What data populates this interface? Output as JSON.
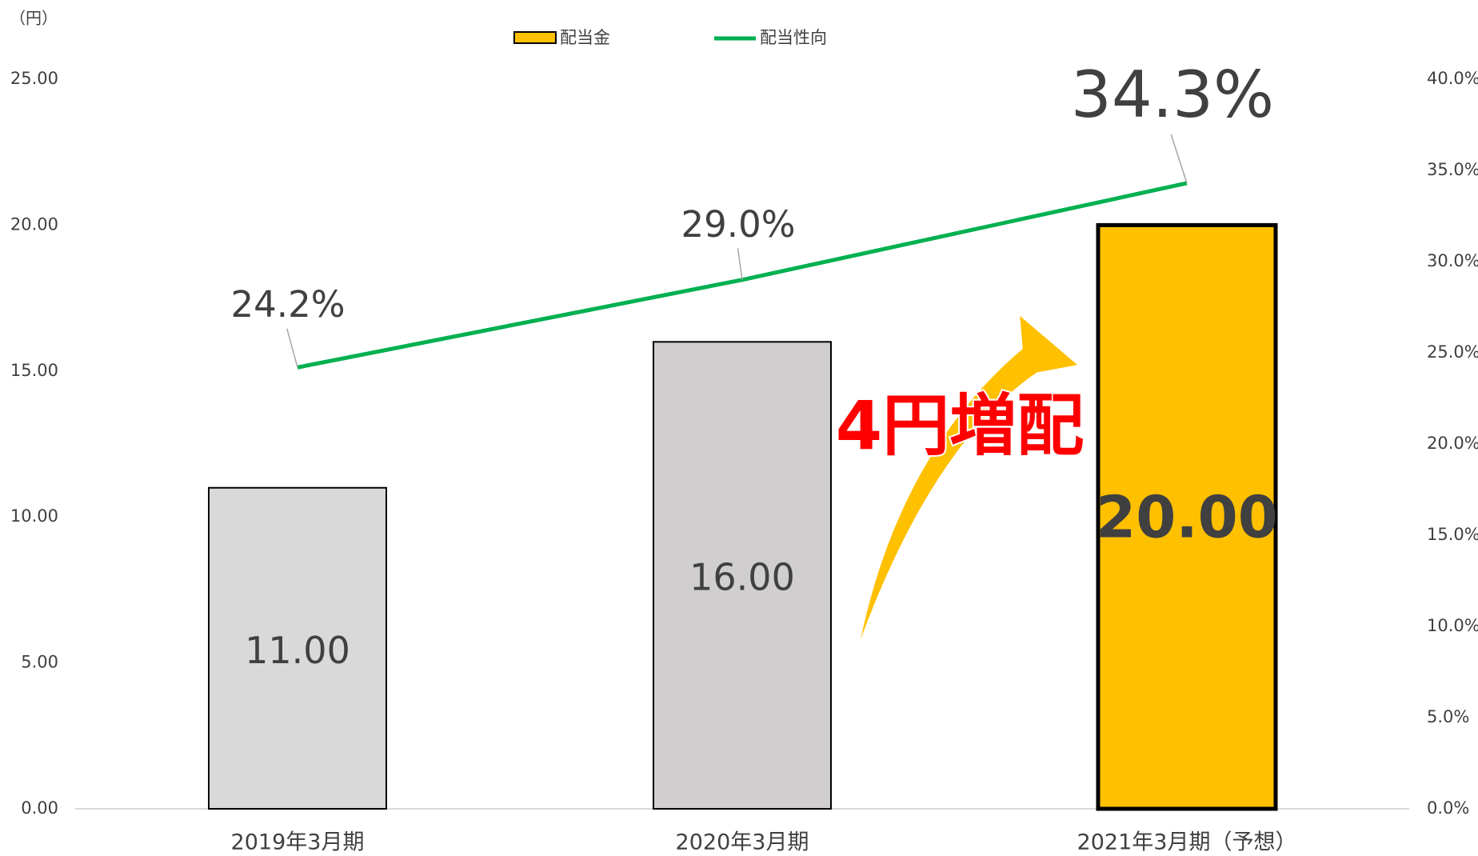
{
  "chart_data": {
    "type": "combo",
    "y_unit_label": "（円）",
    "annotation": "4円増配",
    "categories": [
      "2019年3月期",
      "2020年3月期",
      "2021年3月期（予想）"
    ],
    "series": [
      {
        "name": "配当金",
        "type": "bar",
        "legend_color": "#ffc000",
        "colors": [
          "#d9d9d9",
          "#d0cece",
          "#ffc000"
        ],
        "values": [
          11,
          16,
          20
        ],
        "value_labels": [
          "11.00",
          "16.00",
          "20.00"
        ]
      },
      {
        "name": "配当性向",
        "type": "line",
        "axis": "y2",
        "color": "#00b050",
        "values": [
          24.2,
          29.0,
          34.3
        ],
        "value_labels": [
          "24.2%",
          "29.0%",
          "34.3%"
        ]
      }
    ],
    "ylim": [
      0,
      25
    ],
    "yticks": [
      {
        "value": 0,
        "label": "0.00"
      },
      {
        "value": 5,
        "label": "5.00"
      },
      {
        "value": 10,
        "label": "10.00"
      },
      {
        "value": 15,
        "label": "15.00"
      },
      {
        "value": 20,
        "label": "20.00"
      },
      {
        "value": 25,
        "label": "25.00"
      }
    ],
    "y2lim": [
      0,
      40
    ],
    "y2ticks": [
      {
        "value": 0,
        "label": "0.0%"
      },
      {
        "value": 5,
        "label": "5.0%"
      },
      {
        "value": 10,
        "label": "10.0%"
      },
      {
        "value": 15,
        "label": "15.0%"
      },
      {
        "value": 20,
        "label": "20.0%"
      },
      {
        "value": 25,
        "label": "25.0%"
      },
      {
        "value": 30,
        "label": "30.0%"
      },
      {
        "value": 35,
        "label": "35.0%"
      },
      {
        "value": 40,
        "label": "40.0%"
      }
    ]
  }
}
